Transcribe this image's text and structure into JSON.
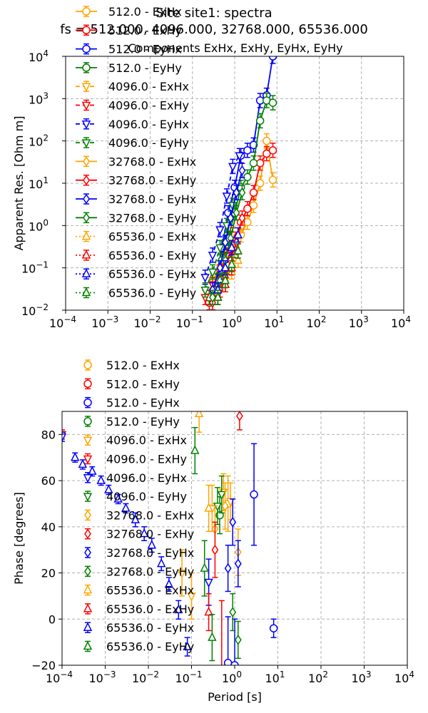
{
  "header": {
    "title": "Site site1: spectra",
    "subtitle": "fs = 512.000, 4096.000, 32768.000, 65536.000",
    "components": "Components ExHx, ExHy, EyHx, EyHy"
  },
  "chart_data": [
    {
      "type": "scatter",
      "name": "apparent-resistivity",
      "xlabel": "",
      "ylabel": "Apparent Res. [Ohm m]",
      "xscale": "log",
      "yscale": "log",
      "xlim": [
        0.0001,
        10000
      ],
      "ylim": [
        0.01,
        10000
      ],
      "xticks": [
        {
          "v": 0.0001,
          "b": "10",
          "e": "−4"
        },
        {
          "v": 0.001,
          "b": "10",
          "e": "−3"
        },
        {
          "v": 0.01,
          "b": "10",
          "e": "−2"
        },
        {
          "v": 0.1,
          "b": "10",
          "e": "−1"
        },
        {
          "v": 1,
          "b": "10",
          "e": "0"
        },
        {
          "v": 10,
          "b": "10",
          "e": "1"
        },
        {
          "v": 100,
          "b": "10",
          "e": "2"
        },
        {
          "v": 1000,
          "b": "10",
          "e": "3"
        },
        {
          "v": 10000,
          "b": "10",
          "e": "4"
        }
      ],
      "yticks": [
        {
          "v": 0.01,
          "b": "10",
          "e": "−2"
        },
        {
          "v": 0.1,
          "b": "10",
          "e": "−1"
        },
        {
          "v": 1,
          "b": "10",
          "e": "0"
        },
        {
          "v": 10,
          "b": "10",
          "e": "1"
        },
        {
          "v": 100,
          "b": "10",
          "e": "2"
        },
        {
          "v": 1000,
          "b": "10",
          "e": "3"
        },
        {
          "v": 10000,
          "b": "10",
          "e": "4"
        }
      ],
      "grid": true,
      "legend_position": "upper-left",
      "series": [
        {
          "name": "512.0 - ExHx",
          "color": "#ffa500",
          "marker": "circle",
          "dash": "solid",
          "x": [
            0.25,
            0.35,
            0.5,
            0.7,
            1.0,
            1.4,
            2.0,
            2.8,
            4.0,
            5.7,
            8.0
          ],
          "y": [
            0.02,
            0.04,
            0.08,
            0.15,
            0.3,
            0.6,
            1.2,
            3.0,
            10,
            100,
            12
          ]
        },
        {
          "name": "512.0 - ExHy",
          "color": "#ff0000",
          "marker": "circle",
          "dash": "solid",
          "x": [
            0.25,
            0.35,
            0.5,
            0.7,
            1.0,
            1.4,
            2.0,
            2.8,
            4.0,
            5.7,
            8.0
          ],
          "y": [
            0.015,
            0.03,
            0.06,
            0.12,
            0.35,
            1.2,
            2.5,
            6,
            30,
            50,
            60
          ]
        },
        {
          "name": "512.0 - EyHx",
          "color": "#0000ff",
          "marker": "circle",
          "dash": "solid",
          "x": [
            0.25,
            0.35,
            0.5,
            0.7,
            1.0,
            1.4,
            2.0,
            2.8,
            4.0,
            5.7,
            8.0
          ],
          "y": [
            0.02,
            0.05,
            0.3,
            2.0,
            8,
            45,
            60,
            80,
            900,
            1200,
            10000
          ]
        },
        {
          "name": "512.0 - EyHy",
          "color": "#008000",
          "marker": "circle",
          "dash": "solid",
          "x": [
            0.25,
            0.35,
            0.5,
            0.7,
            1.0,
            1.4,
            2.0,
            2.8,
            4.0,
            5.7,
            8.0
          ],
          "y": [
            0.02,
            0.05,
            0.15,
            0.5,
            2.0,
            8,
            14,
            30,
            300,
            900,
            800
          ]
        },
        {
          "name": "4096.0 - ExHx",
          "color": "#ffa500",
          "marker": "tri-down",
          "dash": "dashed",
          "x": [
            0.2,
            0.3,
            0.45,
            0.65,
            0.9
          ],
          "y": [
            0.03,
            0.05,
            0.1,
            0.2,
            0.4
          ]
        },
        {
          "name": "4096.0 - ExHy",
          "color": "#ff0000",
          "marker": "tri-down",
          "dash": "dashed",
          "x": [
            0.2,
            0.3,
            0.45,
            0.65,
            0.9
          ],
          "y": [
            0.02,
            0.04,
            0.08,
            0.2,
            0.6
          ]
        },
        {
          "name": "4096.0 - EyHx",
          "color": "#0000ff",
          "marker": "tri-down",
          "dash": "dashed",
          "x": [
            0.2,
            0.3,
            0.45,
            0.65,
            0.9,
            1.3
          ],
          "y": [
            0.06,
            0.2,
            0.8,
            5,
            25,
            45
          ]
        },
        {
          "name": "4096.0 - EyHy",
          "color": "#008000",
          "marker": "tri-down",
          "dash": "dashed",
          "x": [
            0.2,
            0.3,
            0.45,
            0.65,
            0.9
          ],
          "y": [
            0.03,
            0.08,
            0.3,
            1.0,
            3.0
          ]
        },
        {
          "name": "32768.0 - ExHx",
          "color": "#ffa500",
          "marker": "diamond",
          "dash": "solid",
          "x": [
            0.3,
            0.45,
            0.6,
            0.8,
            1.1,
            1.5
          ],
          "y": [
            0.02,
            0.03,
            0.05,
            0.1,
            0.3,
            1.0
          ]
        },
        {
          "name": "32768.0 - ExHy",
          "color": "#ff0000",
          "marker": "diamond",
          "dash": "solid",
          "x": [
            0.3,
            0.45,
            0.6,
            0.8,
            1.1,
            1.5
          ],
          "y": [
            0.015,
            0.03,
            0.06,
            0.15,
            0.4,
            1.5
          ]
        },
        {
          "name": "32768.0 - EyHx",
          "color": "#0000ff",
          "marker": "diamond",
          "dash": "solid",
          "x": [
            0.3,
            0.45,
            0.6,
            0.8,
            1.1,
            1.5
          ],
          "y": [
            0.03,
            0.1,
            0.4,
            1.5,
            6,
            20
          ]
        },
        {
          "name": "32768.0 - EyHy",
          "color": "#008000",
          "marker": "diamond",
          "dash": "solid",
          "x": [
            0.3,
            0.45,
            0.6,
            0.8,
            1.1,
            1.5
          ],
          "y": [
            0.02,
            0.05,
            0.15,
            0.5,
            2.0,
            6
          ]
        },
        {
          "name": "65536.0 - ExHx",
          "color": "#ffa500",
          "marker": "tri-up",
          "dash": "dotted",
          "x": [
            0.4,
            0.6,
            0.85,
            1.2
          ],
          "y": [
            0.02,
            0.04,
            0.08,
            0.15
          ]
        },
        {
          "name": "65536.0 - ExHy",
          "color": "#ff0000",
          "marker": "tri-up",
          "dash": "dotted",
          "x": [
            0.4,
            0.6,
            0.85,
            1.2
          ],
          "y": [
            0.02,
            0.04,
            0.1,
            0.25
          ]
        },
        {
          "name": "65536.0 - EyHx",
          "color": "#0000ff",
          "marker": "tri-up",
          "dash": "dotted",
          "x": [
            0.4,
            0.6,
            0.85,
            1.2
          ],
          "y": [
            0.03,
            0.1,
            0.3,
            0.6
          ]
        },
        {
          "name": "65536.0 - EyHy",
          "color": "#008000",
          "marker": "tri-up",
          "dash": "dotted",
          "x": [
            0.4,
            0.6,
            0.85,
            1.2
          ],
          "y": [
            0.02,
            0.05,
            0.12,
            0.25
          ]
        }
      ]
    },
    {
      "type": "scatter",
      "name": "phase",
      "xlabel": "Period [s]",
      "ylabel": "Phase [degrees]",
      "xscale": "log",
      "yscale": "linear",
      "xlim": [
        0.0001,
        10000
      ],
      "ylim": [
        -20,
        90
      ],
      "xticks": [
        {
          "v": 0.0001,
          "b": "10",
          "e": "−4"
        },
        {
          "v": 0.001,
          "b": "10",
          "e": "−3"
        },
        {
          "v": 0.01,
          "b": "10",
          "e": "−2"
        },
        {
          "v": 0.1,
          "b": "10",
          "e": "−1"
        },
        {
          "v": 1,
          "b": "10",
          "e": "0"
        },
        {
          "v": 10,
          "b": "10",
          "e": "1"
        },
        {
          "v": 100,
          "b": "10",
          "e": "2"
        },
        {
          "v": 1000,
          "b": "10",
          "e": "3"
        },
        {
          "v": 10000,
          "b": "10",
          "e": "4"
        }
      ],
      "yticks": [
        {
          "v": -20,
          "label": "−20"
        },
        {
          "v": 0,
          "label": "0"
        },
        {
          "v": 20,
          "label": "20"
        },
        {
          "v": 40,
          "label": "40"
        },
        {
          "v": 60,
          "label": "60"
        },
        {
          "v": 80,
          "label": "80"
        }
      ],
      "grid": true,
      "legend_position": "above-upper-left",
      "series": [
        {
          "name": "512.0 - ExHx",
          "color": "#ffa500",
          "marker": "circle",
          "x": [
            0.7
          ],
          "y": [
            50
          ],
          "err": [
            12
          ]
        },
        {
          "name": "512.0 - ExHy",
          "color": "#ff0000",
          "marker": "circle",
          "x": [
            0.5
          ],
          "y": [
            -22
          ],
          "err": [
            30
          ]
        },
        {
          "name": "512.0 - EyHx",
          "color": "#0000ff",
          "marker": "circle",
          "x": [
            0.7,
            1.0,
            2.8,
            8.0
          ],
          "y": [
            -19,
            -20,
            54,
            -4
          ],
          "err": [
            20,
            20,
            22,
            4
          ]
        },
        {
          "name": "512.0 - EyHy",
          "color": "#008000",
          "marker": "circle",
          "x": [
            0.45
          ],
          "y": [
            45
          ],
          "err": [
            8
          ]
        },
        {
          "name": "4096.0 - ExHx",
          "color": "#ffa500",
          "marker": "tri-down",
          "x": [
            0.06,
            0.1,
            0.3,
            0.55,
            0.8
          ],
          "y": [
            20,
            10,
            48,
            55,
            51
          ],
          "err": [
            10,
            10,
            10,
            8,
            8
          ]
        },
        {
          "name": "4096.0 - ExHy",
          "color": "#ff0000",
          "marker": "tri-down",
          "x": [
            0.0001
          ],
          "y": [
            80
          ],
          "err": [
            2
          ]
        },
        {
          "name": "4096.0 - EyHx",
          "color": "#0000ff",
          "marker": "tri-down",
          "x": [
            0.0001,
            0.25
          ],
          "y": [
            79,
            16
          ],
          "err": [
            2,
            10
          ]
        },
        {
          "name": "4096.0 - EyHy",
          "color": "#008000",
          "marker": "tri-down",
          "x": [
            0.4,
            0.5
          ],
          "y": [
            49,
            54
          ],
          "err": [
            8,
            8
          ]
        },
        {
          "name": "32768.0 - ExHx",
          "color": "#ffa500",
          "marker": "diamond",
          "x": [
            0.35,
            0.6,
            1.2
          ],
          "y": [
            39,
            49,
            29
          ],
          "err": [
            10,
            10,
            10
          ]
        },
        {
          "name": "32768.0 - ExHy",
          "color": "#ff0000",
          "marker": "diamond",
          "x": [
            0.35,
            1.3
          ],
          "y": [
            30,
            88
          ],
          "err": [
            12,
            6
          ]
        },
        {
          "name": "32768.0 - EyHx",
          "color": "#0000ff",
          "marker": "diamond",
          "x": [
            0.7,
            0.9,
            1.2
          ],
          "y": [
            22,
            42,
            24
          ],
          "err": [
            10,
            10,
            10
          ]
        },
        {
          "name": "32768.0 - EyHy",
          "color": "#008000",
          "marker": "diamond",
          "x": [
            0.9,
            1.2
          ],
          "y": [
            3,
            -9
          ],
          "err": [
            8,
            8
          ]
        },
        {
          "name": "65536.0 - ExHx",
          "color": "#ffa500",
          "marker": "tri-up",
          "x": [
            0.15,
            0.25
          ],
          "y": [
            89,
            48
          ],
          "err": [
            8,
            10
          ]
        },
        {
          "name": "65536.0 - ExHy",
          "color": "#ff0000",
          "marker": "tri-up",
          "x": [
            0.25
          ],
          "y": [
            3
          ],
          "err": [
            8
          ]
        },
        {
          "name": "65536.0 - EyHx",
          "color": "#0000ff",
          "marker": "tri-up",
          "x": [
            0.0002,
            0.0003,
            0.0005,
            0.0008,
            0.0012,
            0.002,
            0.003,
            0.005,
            0.008,
            0.012,
            0.02,
            0.03,
            0.05,
            0.08
          ],
          "y": [
            70,
            67,
            64,
            60,
            56,
            52,
            48,
            43,
            37,
            32,
            24,
            15,
            4,
            -12
          ],
          "err": [
            2,
            2,
            2,
            2,
            2,
            2,
            2,
            3,
            3,
            3,
            3,
            3,
            4,
            4
          ]
        },
        {
          "name": "65536.0 - EyHy",
          "color": "#008000",
          "marker": "tri-up",
          "x": [
            0.12,
            0.2,
            0.3
          ],
          "y": [
            73,
            22,
            -8
          ],
          "err": [
            10,
            12,
            10
          ]
        }
      ]
    }
  ]
}
